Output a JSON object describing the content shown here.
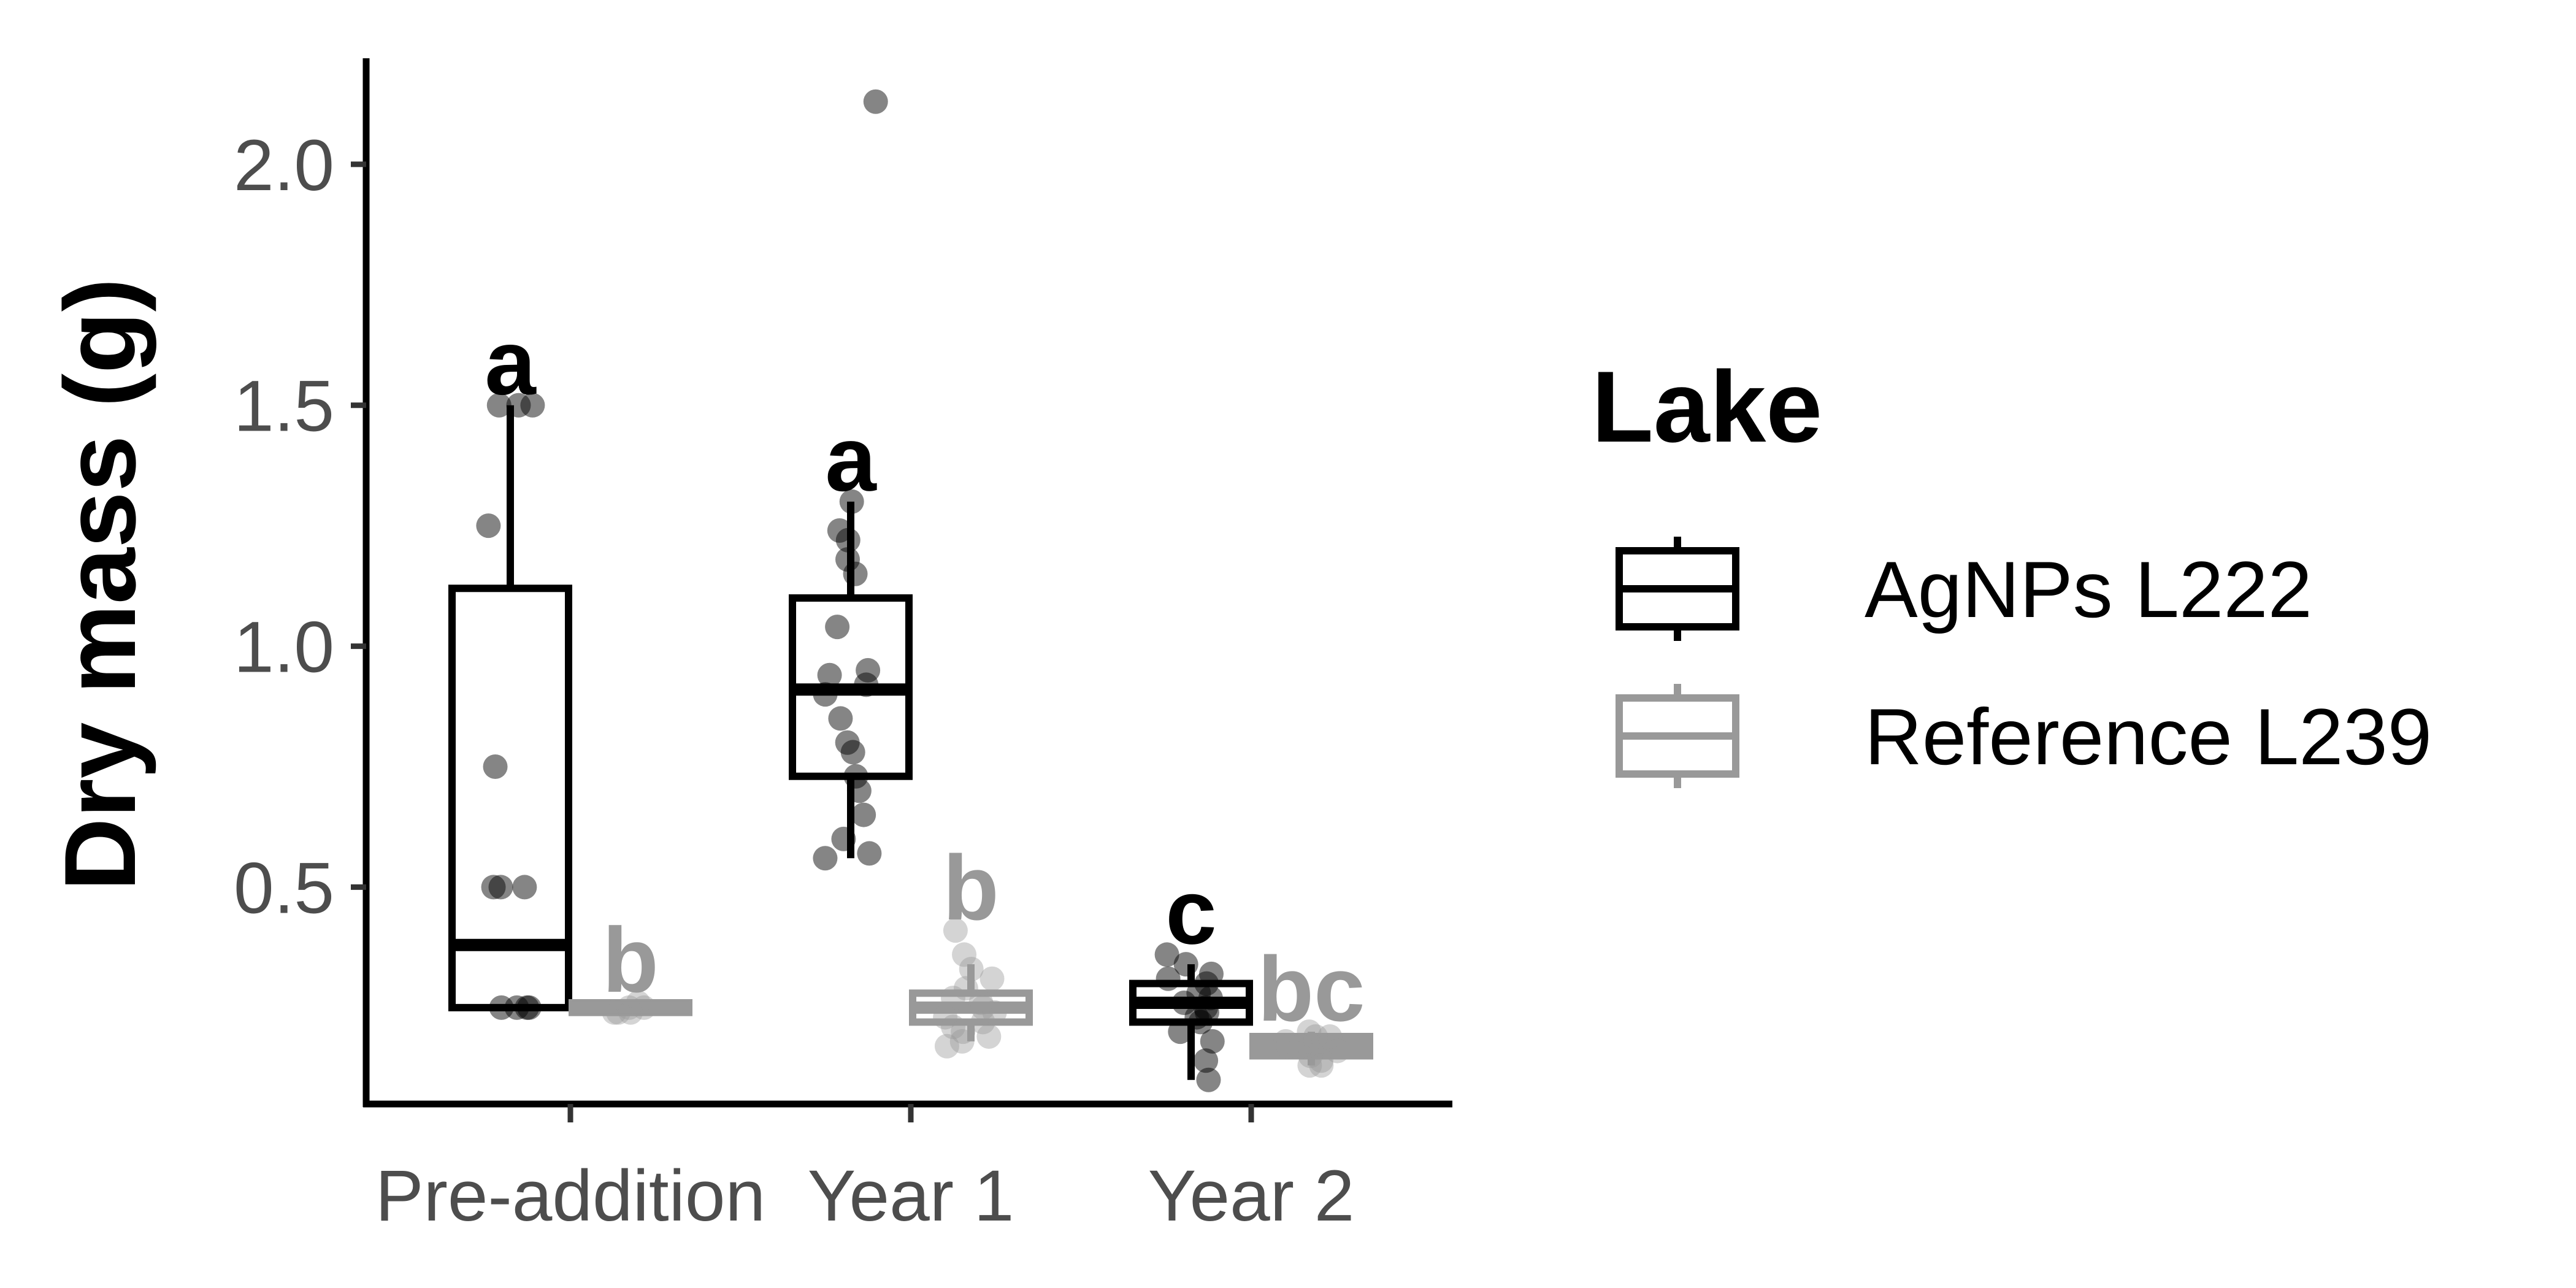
{
  "chart_data": {
    "type": "boxplot",
    "ylabel": "Dry mass (g)",
    "xlabel": "",
    "categories": [
      "Pre-addition",
      "Year 1",
      "Year 2"
    ],
    "y_ticks": [
      0.5,
      1.0,
      1.5,
      2.0
    ],
    "y_tick_labels": [
      "0.5",
      "1.0",
      "1.5",
      "2.0"
    ],
    "ylim": [
      0.05,
      2.22
    ],
    "legend": {
      "title": "Lake",
      "position": "right"
    },
    "series": [
      {
        "name": "AgNPs L222",
        "color": "#000000",
        "boxes": [
          {
            "category": "Pre-addition",
            "min": 0.25,
            "q1": 0.25,
            "median": 0.38,
            "q3": 1.12,
            "max": 1.5,
            "letter": "a",
            "points": [
              1.5,
              1.5,
              1.5,
              1.25,
              0.75,
              0.5,
              0.5,
              0.5,
              0.25,
              0.25,
              0.25,
              0.25
            ]
          },
          {
            "category": "Year 1",
            "min": 0.56,
            "q1": 0.73,
            "median": 0.91,
            "q3": 1.1,
            "max": 1.3,
            "letter": "a",
            "points": [
              2.13,
              1.3,
              1.24,
              1.22,
              1.18,
              1.15,
              1.04,
              0.95,
              0.94,
              0.92,
              0.9,
              0.85,
              0.8,
              0.78,
              0.73,
              0.7,
              0.65,
              0.6,
              0.57,
              0.56
            ]
          },
          {
            "category": "Year 2",
            "min": 0.1,
            "q1": 0.22,
            "median": 0.26,
            "q3": 0.3,
            "max": 0.34,
            "letter": "c",
            "points": [
              0.36,
              0.34,
              0.32,
              0.31,
              0.3,
              0.28,
              0.27,
              0.26,
              0.25,
              0.24,
              0.23,
              0.22,
              0.2,
              0.18,
              0.14,
              0.1
            ]
          }
        ]
      },
      {
        "name": "Reference L239",
        "color": "#999999",
        "boxes": [
          {
            "category": "Pre-addition",
            "min": 0.24,
            "q1": 0.24,
            "median": 0.25,
            "q3": 0.26,
            "max": 0.26,
            "letter": "b",
            "points": [
              0.26,
              0.25,
              0.25,
              0.24,
              0.24,
              0.24
            ]
          },
          {
            "category": "Year 1",
            "min": 0.18,
            "q1": 0.22,
            "median": 0.25,
            "q3": 0.28,
            "max": 0.34,
            "letter": "b",
            "points": [
              0.41,
              0.36,
              0.33,
              0.31,
              0.29,
              0.27,
              0.26,
              0.25,
              0.24,
              0.23,
              0.22,
              0.21,
              0.2,
              0.19,
              0.18,
              0.17
            ]
          },
          {
            "category": "Year 2",
            "min": 0.13,
            "q1": 0.15,
            "median": 0.17,
            "q3": 0.19,
            "max": 0.2,
            "letter": "bc",
            "points": [
              0.2,
              0.19,
              0.19,
              0.18,
              0.17,
              0.17,
              0.16,
              0.15,
              0.14,
              0.13,
              0.13
            ]
          }
        ]
      }
    ]
  }
}
